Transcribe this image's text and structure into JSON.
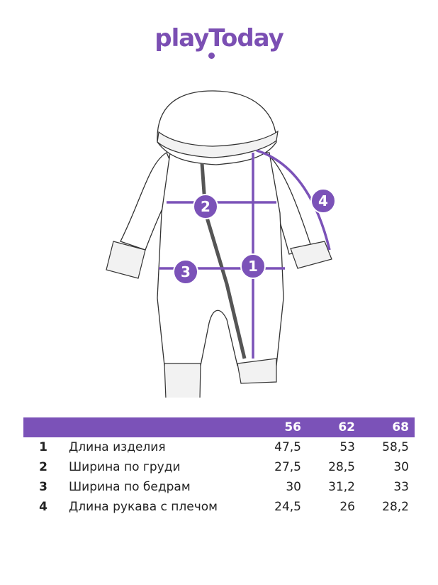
{
  "logo": "playToday",
  "markers": [
    "1",
    "2",
    "3",
    "4"
  ],
  "table": {
    "header": [
      "56",
      "62",
      "68"
    ],
    "rows": [
      [
        "1",
        "Длина изделия",
        "47,5",
        "53",
        "58,5"
      ],
      [
        "2",
        "Ширина по груди",
        "27,5",
        "28,5",
        "30"
      ],
      [
        "3",
        "Ширина по бедрам",
        "30",
        "31,2",
        "33"
      ],
      [
        "4",
        "Длина рукава с плечом",
        "24,5",
        "26",
        "28,2"
      ]
    ]
  }
}
